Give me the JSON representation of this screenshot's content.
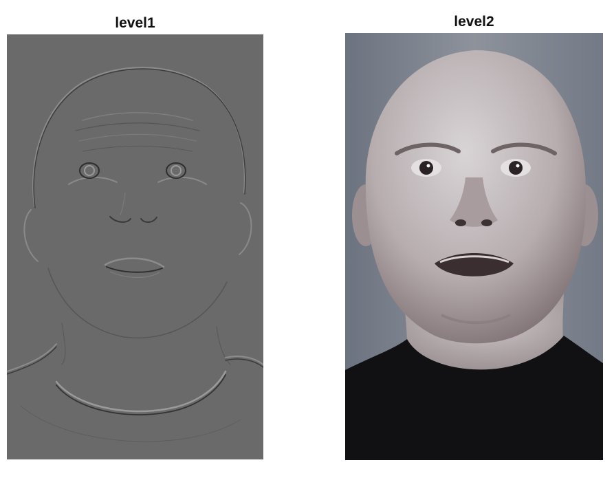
{
  "panels": {
    "left": {
      "title": "level1",
      "image_semantic": "high-frequency-edge-face-image",
      "background_color": "#6b6b6b"
    },
    "right": {
      "title": "level2",
      "image_semantic": "grayscale-face-photo",
      "background_color": "#7e8590"
    }
  }
}
